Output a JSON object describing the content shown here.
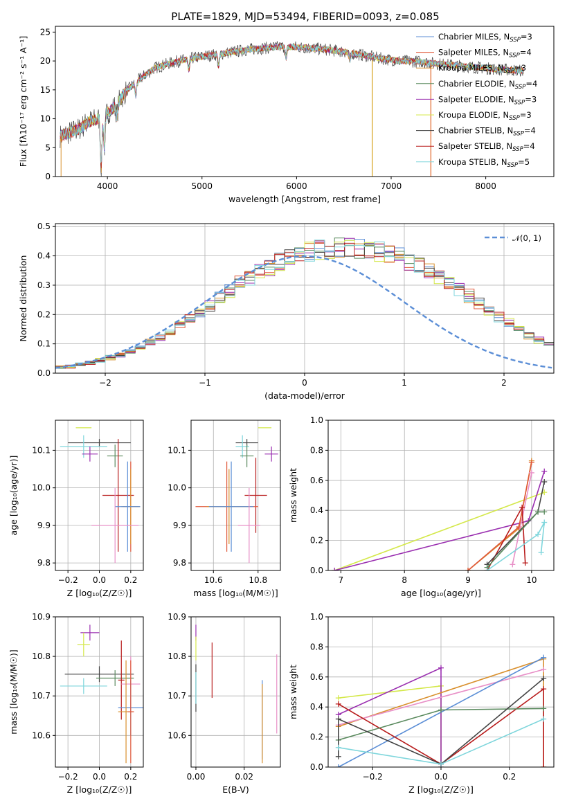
{
  "figure": {
    "title": "PLATE=1829, MJD=53494, FIBERID=0093, z=0.085"
  },
  "chart_data": [
    {
      "type": "line",
      "id": "spectrum",
      "title": "PLATE=1829, MJD=53494, FIBERID=0093, z=0.085",
      "xlabel": "wavelength [Angstrom, rest frame]",
      "ylabel": "Flux [fλ10⁻¹⁷ erg cm⁻² s⁻¹ A⁻¹]",
      "xlim": [
        3450,
        8720
      ],
      "ylim": [
        0,
        26
      ],
      "xticks": [
        4000,
        5000,
        6000,
        7000,
        8000
      ],
      "yticks": [
        0,
        5,
        10,
        15,
        20,
        25
      ],
      "grid": false,
      "legend_position": "right",
      "continuum": {
        "x": [
          3500,
          3600,
          3700,
          3800,
          3900,
          4000,
          4100,
          4200,
          4300,
          4400,
          4500,
          4700,
          4900,
          5100,
          5300,
          5500,
          5700,
          5900,
          6100,
          6300,
          6500,
          6700,
          6900,
          7100,
          7300,
          7500,
          7700,
          7900,
          8100,
          8300,
          8400
        ],
        "y": [
          7.0,
          7.6,
          8.2,
          9.5,
          10.0,
          11.0,
          12.5,
          14.8,
          16.3,
          17.6,
          18.8,
          19.8,
          20.5,
          21.0,
          21.5,
          22.0,
          22.3,
          22.5,
          22.3,
          22.0,
          21.6,
          21.0,
          20.4,
          20.0,
          19.9,
          19.5,
          19.2,
          18.9,
          18.6,
          18.4,
          18.3
        ]
      },
      "absorption_features": [
        {
          "x": 3934,
          "y": 1.5
        },
        {
          "x": 3968,
          "y": 5.0
        },
        {
          "x": 4101,
          "y": 10.5
        },
        {
          "x": 4300,
          "y": 14.0
        },
        {
          "x": 4861,
          "y": 18.5
        },
        {
          "x": 5175,
          "y": 19.0
        },
        {
          "x": 5890,
          "y": 20.5
        },
        {
          "x": 6563,
          "y": 20.0
        }
      ],
      "spikes": [
        {
          "x": 6800,
          "y": 0.0,
          "color": "#d4a017"
        },
        {
          "x": 7420,
          "y": 0.0,
          "color": "#e06020"
        }
      ],
      "series": [
        {
          "name": "Chabrier MILES, NSSP=3",
          "color": "#5b8ed6"
        },
        {
          "name": "Salpeter MILES, NSSP=4",
          "color": "#e0583a"
        },
        {
          "name": "Kroupa MILES, NSSP=3",
          "color": "#d9902e"
        },
        {
          "name": "Chabrier ELODIE, NSSP=4",
          "color": "#5a8a5e"
        },
        {
          "name": "Salpeter ELODIE, NSSP=3",
          "color": "#9a2fb0"
        },
        {
          "name": "Kroupa ELODIE, NSSP=3",
          "color": "#d4e84a"
        },
        {
          "name": "Chabrier STELIB, NSSP=4",
          "color": "#444444"
        },
        {
          "name": "Salpeter STELIB, NSSP=4",
          "color": "#b81c1c"
        },
        {
          "name": "Kroupa STELIB, NSSP=5",
          "color": "#7fd6dc"
        }
      ],
      "legend_parts": [
        [
          "Chabrier MILES, N",
          "SSP",
          "=3"
        ],
        [
          "Salpeter MILES, N",
          "SSP",
          "=4"
        ],
        [
          "Kroupa MILES, N",
          "SSP",
          "=3"
        ],
        [
          "Chabrier ELODIE, N",
          "SSP",
          "=4"
        ],
        [
          "Salpeter ELODIE, N",
          "SSP",
          "=3"
        ],
        [
          "Kroupa ELODIE, N",
          "SSP",
          "=3"
        ],
        [
          "Chabrier STELIB, N",
          "SSP",
          "=4"
        ],
        [
          "Salpeter STELIB, N",
          "SSP",
          "=4"
        ],
        [
          "Kroupa STELIB, N",
          "SSP",
          "=5"
        ]
      ]
    },
    {
      "type": "area",
      "id": "residuals",
      "xlabel": "(data-model)/error",
      "ylabel": "Normed distribution",
      "xlim": [
        -2.5,
        2.5
      ],
      "ylim": [
        0,
        0.51
      ],
      "xticks": [
        -2,
        -1,
        0,
        1,
        2
      ],
      "yticks": [
        0.0,
        0.1,
        0.2,
        0.3,
        0.4,
        0.5
      ],
      "grid": true,
      "legend_position": "top-right",
      "bin_edges_start": -2.5,
      "bin_width": 0.1,
      "base_profile": [
        0.02,
        0.024,
        0.03,
        0.036,
        0.044,
        0.052,
        0.062,
        0.074,
        0.088,
        0.104,
        0.12,
        0.14,
        0.162,
        0.184,
        0.208,
        0.232,
        0.256,
        0.28,
        0.304,
        0.326,
        0.346,
        0.364,
        0.38,
        0.394,
        0.405,
        0.414,
        0.42,
        0.424,
        0.426,
        0.426,
        0.424,
        0.42,
        0.414,
        0.406,
        0.396,
        0.382,
        0.366,
        0.348,
        0.328,
        0.306,
        0.284,
        0.262,
        0.238,
        0.214,
        0.192,
        0.17,
        0.15,
        0.13,
        0.112,
        0.096,
        0.082,
        0.07,
        0.06,
        0.051,
        0.044,
        0.038,
        0.033,
        0.029,
        0.026,
        0.024,
        0.022,
        0.02,
        0.019,
        0.018,
        0.017,
        0.016,
        0.016,
        0.015,
        0.015,
        0.015,
        0.015,
        0.015,
        0.015,
        0.015,
        0.015,
        0.015,
        0.015,
        0.015,
        0.015,
        0.015,
        0.015,
        0.015,
        0.015,
        0.015,
        0.015,
        0.015,
        0.015,
        0.015,
        0.015,
        0.015,
        0.015,
        0.015,
        0.015,
        0.015,
        0.015,
        0.015,
        0.015,
        0.015,
        0.015,
        0.015,
        0.015
      ],
      "reference_curve": {
        "name": "N(0,1)",
        "color": "#5b8ed6",
        "mu": 0,
        "sigma": 1
      },
      "legend_label": "𝒩(0, 1)"
    },
    {
      "type": "scatter",
      "id": "age_vs_Z",
      "xlabel": "Z [log₁₀(Z/Z☉)]",
      "ylabel": "age  [log₁₀(age/yr)]",
      "xlim": [
        -0.28,
        0.28
      ],
      "ylim": [
        9.78,
        10.18
      ],
      "xticks": [
        -0.2,
        0.0,
        0.2
      ],
      "yticks": [
        9.8,
        9.9,
        10.0,
        10.1
      ],
      "grid": true,
      "points": [
        {
          "color": "#d4e84a",
          "x": -0.1,
          "y": 10.16,
          "xerr": 0.05,
          "yerr": 0.0
        },
        {
          "color": "#444444",
          "x": 0.0,
          "y": 10.12,
          "xerr": 0.2,
          "yerr": 0.01
        },
        {
          "color": "#7fd6dc",
          "x": -0.1,
          "y": 10.11,
          "xerr": 0.15,
          "yerr": 0.03
        },
        {
          "color": "#9a2fb0",
          "x": -0.06,
          "y": 10.09,
          "xerr": 0.05,
          "yerr": 0.02
        },
        {
          "color": "#5a8a5e",
          "x": 0.1,
          "y": 10.085,
          "xerr": 0.05,
          "yerr": 0.03
        },
        {
          "color": "#b81c1c",
          "x": 0.12,
          "y": 9.98,
          "xerr": 0.1,
          "yerr": 0.15
        },
        {
          "color": "#e0583a",
          "x": 0.2,
          "y": 9.95,
          "xerr": 0.05,
          "yerr": 0.12
        },
        {
          "color": "#d9902e",
          "x": 0.2,
          "y": 9.95,
          "xerr": 0.06,
          "yerr": 0.1
        },
        {
          "color": "#5b8ed6",
          "x": 0.18,
          "y": 9.95,
          "xerr": 0.08,
          "yerr": 0.12
        },
        {
          "color": "#e88fc7",
          "x": 0.1,
          "y": 9.9,
          "xerr": 0.15,
          "yerr": 0.1
        }
      ]
    },
    {
      "type": "scatter",
      "id": "age_vs_mass",
      "xlabel": "mass [log₁₀(M/M☉)]",
      "ylabel": "",
      "xlim": [
        10.5,
        10.9
      ],
      "ylim": [
        9.78,
        10.18
      ],
      "xticks": [
        10.6,
        10.8
      ],
      "yticks": [
        9.8,
        9.9,
        10.0,
        10.1
      ],
      "grid": true,
      "points": [
        {
          "color": "#d4e84a",
          "x": 10.83,
          "y": 10.16,
          "xerr": 0.03,
          "yerr": 0.0
        },
        {
          "color": "#444444",
          "x": 10.75,
          "y": 10.12,
          "xerr": 0.05,
          "yerr": 0.01
        },
        {
          "color": "#7fd6dc",
          "x": 10.73,
          "y": 10.11,
          "xerr": 0.03,
          "yerr": 0.03
        },
        {
          "color": "#9a2fb0",
          "x": 10.86,
          "y": 10.09,
          "xerr": 0.03,
          "yerr": 0.02
        },
        {
          "color": "#5a8a5e",
          "x": 10.75,
          "y": 10.085,
          "xerr": 0.03,
          "yerr": 0.03
        },
        {
          "color": "#b81c1c",
          "x": 10.79,
          "y": 9.98,
          "xerr": 0.05,
          "yerr": 0.1
        },
        {
          "color": "#e0583a",
          "x": 10.66,
          "y": 9.95,
          "xerr": 0.14,
          "yerr": 0.12
        },
        {
          "color": "#d9902e",
          "x": 10.67,
          "y": 9.95,
          "xerr": 0.1,
          "yerr": 0.1
        },
        {
          "color": "#5b8ed6",
          "x": 10.68,
          "y": 9.95,
          "xerr": 0.1,
          "yerr": 0.12
        },
        {
          "color": "#e88fc7",
          "x": 10.76,
          "y": 9.9,
          "xerr": 0.05,
          "yerr": 0.1
        }
      ]
    },
    {
      "type": "line",
      "id": "weight_vs_age",
      "xlabel": "age  [log₁₀(age/yr)]",
      "ylabel": "mass weight",
      "xlim": [
        6.8,
        10.35
      ],
      "ylim": [
        0,
        1
      ],
      "xticks": [
        7,
        8,
        9,
        10
      ],
      "yticks": [
        0.0,
        0.2,
        0.4,
        0.6,
        0.8,
        1.0
      ],
      "grid": true,
      "series": [
        {
          "color": "#d4e84a",
          "x": [
            6.9,
            10.2
          ],
          "y": [
            0.0,
            0.52
          ]
        },
        {
          "color": "#9a2fb0",
          "x": [
            6.9,
            9.95,
            10.2
          ],
          "y": [
            0.0,
            0.33,
            0.66
          ]
        },
        {
          "color": "#d9902e",
          "x": [
            9.0,
            9.8,
            10.0
          ],
          "y": [
            0.0,
            0.28,
            0.73
          ]
        },
        {
          "color": "#e0583a",
          "x": [
            9.0,
            9.8,
            10.0
          ],
          "y": [
            0.0,
            0.29,
            0.72
          ]
        },
        {
          "color": "#e88fc7",
          "x": [
            9.7,
            10.0
          ],
          "y": [
            0.04,
            0.65
          ]
        },
        {
          "color": "#b81c1c",
          "x": [
            9.3,
            9.85,
            9.9
          ],
          "y": [
            0.0,
            0.42,
            0.05
          ]
        },
        {
          "color": "#444444",
          "x": [
            9.3,
            10.1,
            10.2
          ],
          "y": [
            0.04,
            0.39,
            0.59
          ]
        },
        {
          "color": "#5a8a5e",
          "x": [
            9.3,
            10.1,
            10.2
          ],
          "y": [
            0.02,
            0.39,
            0.39
          ]
        },
        {
          "color": "#7fd6dc",
          "x": [
            9.3,
            10.1,
            10.2,
            10.15
          ],
          "y": [
            0.0,
            0.24,
            0.32,
            0.12
          ]
        }
      ]
    },
    {
      "type": "scatter",
      "id": "mass_vs_Z",
      "xlabel": "Z [log₁₀(Z/Z☉)]",
      "ylabel": "mass [log₁₀(M/M☉)]",
      "xlim": [
        -0.28,
        0.28
      ],
      "ylim": [
        10.52,
        10.9
      ],
      "xticks": [
        -0.2,
        0.0,
        0.2
      ],
      "yticks": [
        10.6,
        10.7,
        10.8,
        10.9
      ],
      "grid": true,
      "points": [
        {
          "color": "#9a2fb0",
          "x": -0.06,
          "y": 10.86,
          "xerr": 0.06,
          "yerr": 0.02
        },
        {
          "color": "#d4e84a",
          "x": -0.1,
          "y": 10.83,
          "xerr": 0.04,
          "yerr": 0.03
        },
        {
          "color": "#444444",
          "x": 0.0,
          "y": 10.755,
          "xerr": 0.22,
          "yerr": 0.02
        },
        {
          "color": "#5a8a5e",
          "x": 0.1,
          "y": 10.745,
          "xerr": 0.12,
          "yerr": 0.02
        },
        {
          "color": "#b81c1c",
          "x": 0.14,
          "y": 10.74,
          "xerr": 0.02,
          "yerr": 0.1
        },
        {
          "color": "#7fd6dc",
          "x": -0.1,
          "y": 10.725,
          "xerr": 0.15,
          "yerr": 0.02
        },
        {
          "color": "#e88fc7",
          "x": 0.2,
          "y": 10.73,
          "xerr": 0.06,
          "yerr": 0.07
        },
        {
          "color": "#5b8ed6",
          "x": 0.2,
          "y": 10.67,
          "xerr": 0.08,
          "yerr": 0.07
        },
        {
          "color": "#d9902e",
          "x": 0.17,
          "y": 10.66,
          "xerr": 0.05,
          "yerr": 0.13
        },
        {
          "color": "#e0583a",
          "x": 0.2,
          "y": 10.66,
          "xerr": 0.02,
          "yerr": 0.13
        }
      ]
    },
    {
      "type": "scatter",
      "id": "mass_vs_EBV",
      "xlabel": "E(B-V)",
      "ylabel": "",
      "xlim": [
        -0.002,
        0.035
      ],
      "ylim": [
        10.52,
        10.9
      ],
      "xticks": [
        0.0,
        0.02
      ],
      "yticks": [
        10.6,
        10.7,
        10.8,
        10.9
      ],
      "grid": true,
      "points": [
        {
          "color": "#9a2fb0",
          "x": 0.0,
          "y": 10.86,
          "xerr": 0.0,
          "yerr": 0.02
        },
        {
          "color": "#d4e84a",
          "x": 0.0,
          "y": 10.82,
          "xerr": 0.0,
          "yerr": 0.03
        },
        {
          "color": "#444444",
          "x": 0.0,
          "y": 10.72,
          "xerr": 0.0,
          "yerr": 0.06
        },
        {
          "color": "#7fd6dc",
          "x": 0.0,
          "y": 10.72,
          "xerr": 0.0,
          "yerr": 0.04
        },
        {
          "color": "#b81c1c",
          "x": 0.0067,
          "y": 10.765,
          "xerr": 0.0,
          "yerr": 0.07
        },
        {
          "color": "#5b8ed6",
          "x": 0.0275,
          "y": 10.64,
          "xerr": 0.0,
          "yerr": 0.1
        },
        {
          "color": "#d9902e",
          "x": 0.0275,
          "y": 10.63,
          "xerr": 0.0,
          "yerr": 0.1
        },
        {
          "color": "#e88fc7",
          "x": 0.0335,
          "y": 10.705,
          "xerr": 0.0,
          "yerr": 0.1
        }
      ]
    },
    {
      "type": "line",
      "id": "weight_vs_Z",
      "xlabel": "Z [log₁₀(Z/Z☉)]",
      "ylabel": "mass weight",
      "xlim": [
        -0.33,
        0.33
      ],
      "ylim": [
        0,
        1
      ],
      "xticks": [
        -0.2,
        0.0,
        0.2
      ],
      "yticks": [
        0.0,
        0.2,
        0.4,
        0.6,
        0.8,
        1.0
      ],
      "grid": true,
      "series": [
        {
          "color": "#d4e84a",
          "x": [
            -0.3,
            0.0,
            0.0
          ],
          "y": [
            0.46,
            0.54,
            0.0
          ]
        },
        {
          "color": "#9a2fb0",
          "x": [
            -0.3,
            0.0,
            0.0
          ],
          "y": [
            0.35,
            0.66,
            0.0
          ]
        },
        {
          "color": "#d9902e",
          "x": [
            -0.3,
            0.3,
            0.3
          ],
          "y": [
            0.27,
            0.72,
            0.0
          ]
        },
        {
          "color": "#e88fc7",
          "x": [
            -0.3,
            0.3
          ],
          "y": [
            0.28,
            0.65
          ]
        },
        {
          "color": "#5b8ed6",
          "x": [
            -0.3,
            0.3
          ],
          "y": [
            0.0,
            0.73
          ]
        },
        {
          "color": "#b81c1c",
          "x": [
            -0.3,
            0.0,
            0.3,
            0.3
          ],
          "y": [
            0.42,
            0.02,
            0.52,
            0.0
          ]
        },
        {
          "color": "#5a8a5e",
          "x": [
            -0.3,
            0.0,
            0.3
          ],
          "y": [
            0.18,
            0.38,
            0.39
          ]
        },
        {
          "color": "#444444",
          "x": [
            -0.3,
            -0.3,
            0.0,
            0.3
          ],
          "y": [
            0.07,
            0.32,
            0.02,
            0.59
          ]
        },
        {
          "color": "#7fd6dc",
          "x": [
            -0.3,
            0.0,
            0.3
          ],
          "y": [
            0.13,
            0.02,
            0.32
          ]
        }
      ]
    }
  ]
}
